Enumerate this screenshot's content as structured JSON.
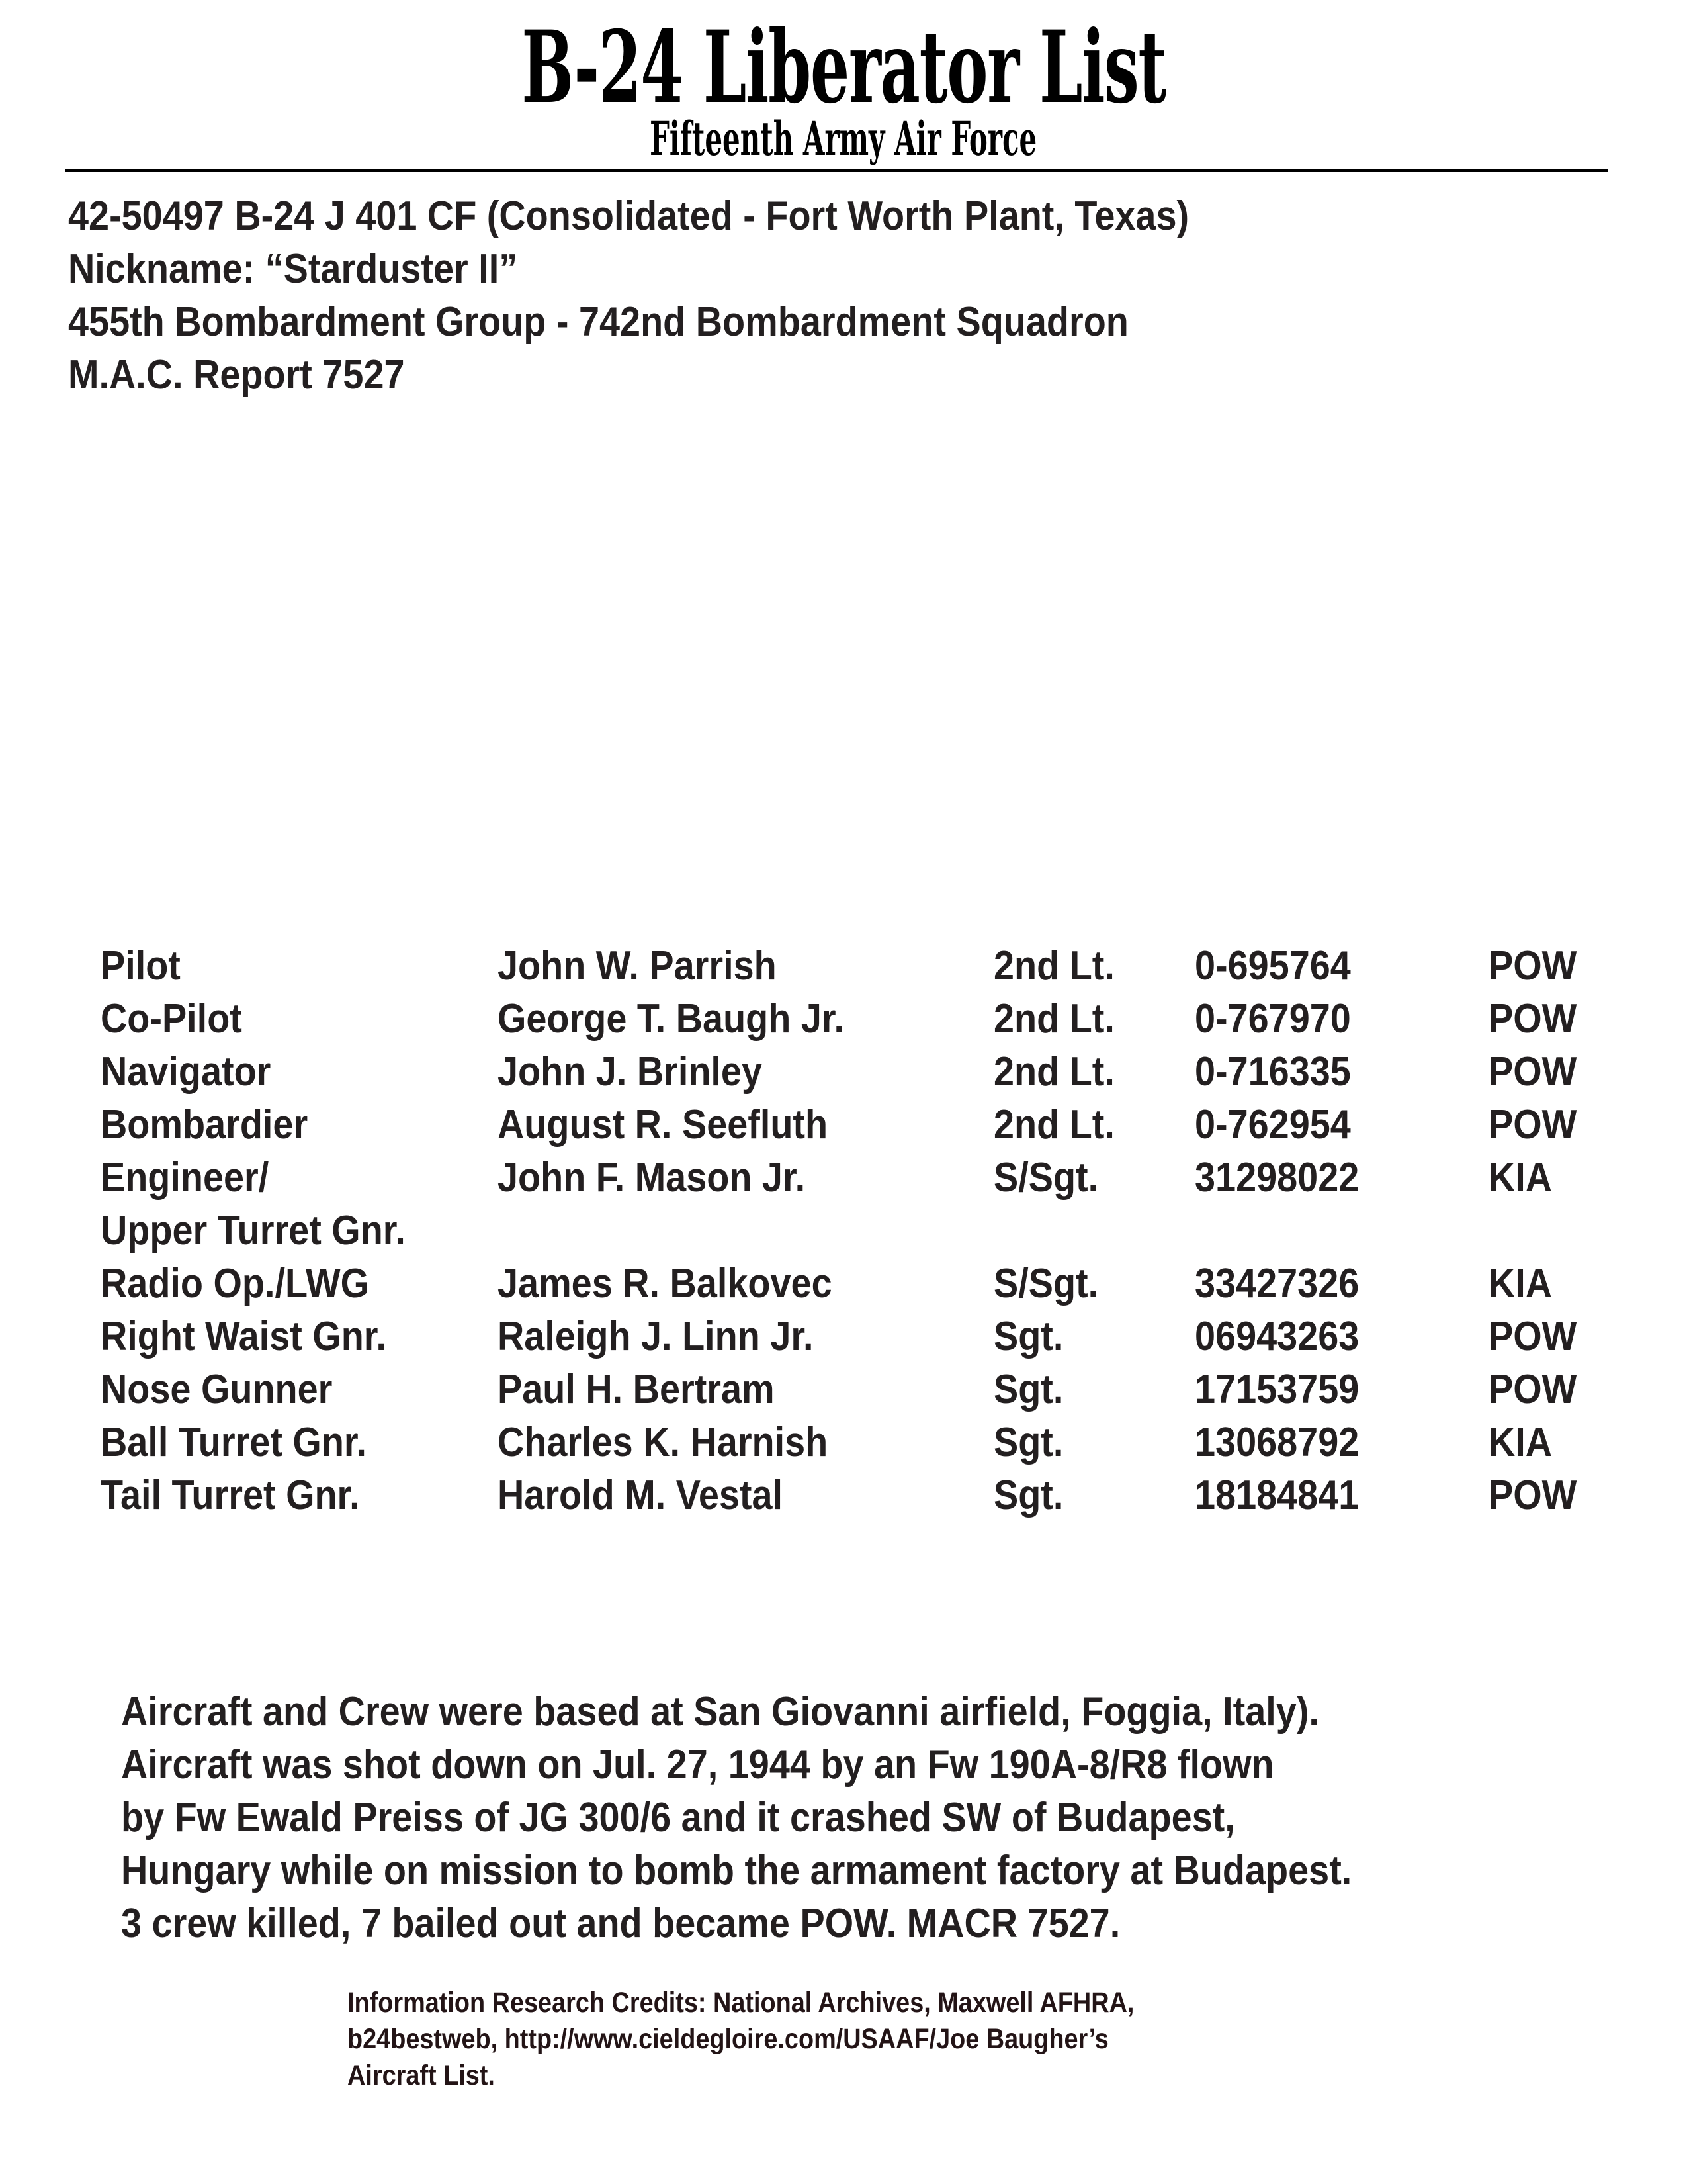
{
  "header": {
    "title": "B-24 Liberator List",
    "subtitle": "Fifteenth Army Air Force"
  },
  "aircraft": {
    "line1": "42-50497  B-24 J 401 CF  (Consolidated - Fort Worth Plant,  Texas)",
    "line2": "Nickname: “Starduster II”",
    "line3": "455th Bombardment Group - 742nd Bombardment Squadron",
    "line4": "M.A.C.  Report  7527"
  },
  "crew": [
    {
      "position": "Pilot",
      "name": "John W. Parrish",
      "rank": "2nd Lt.",
      "serial": "0-695764",
      "status": "POW"
    },
    {
      "position": "Co-Pilot",
      "name": "George T. Baugh Jr.",
      "rank": "2nd Lt.",
      "serial": "0-767970",
      "status": "POW"
    },
    {
      "position": "Navigator",
      "name": "John J. Brinley",
      "rank": "2nd Lt.",
      "serial": "0-716335",
      "status": "POW"
    },
    {
      "position": "Bombardier",
      "name": "August R. Seefluth",
      "rank": "2nd Lt.",
      "serial": "0-762954",
      "status": "POW"
    },
    {
      "position": "Engineer/",
      "name": "John F. Mason Jr.",
      "rank": "S/Sgt.",
      "serial": "31298022",
      "status": "KIA"
    },
    {
      "position": "Upper Turret Gnr.",
      "name": "",
      "rank": "",
      "serial": "",
      "status": ""
    },
    {
      "position": "Radio Op./LWG",
      "name": "James R. Balkovec",
      "rank": "S/Sgt.",
      "serial": "33427326",
      "status": "KIA"
    },
    {
      "position": "Right Waist Gnr.",
      "name": "Raleigh J. Linn Jr.",
      "rank": "Sgt.",
      "serial": "06943263",
      "status": "POW"
    },
    {
      "position": "Nose Gunner",
      "name": "Paul H. Bertram",
      "rank": "Sgt.",
      "serial": "17153759",
      "status": "POW"
    },
    {
      "position": "Ball Turret Gnr.",
      "name": "Charles K. Harnish",
      "rank": "Sgt.",
      "serial": "13068792",
      "status": "KIA"
    },
    {
      "position": "Tail Turret Gnr.",
      "name": "Harold M. Vestal",
      "rank": "Sgt.",
      "serial": "18184841",
      "status": "POW"
    }
  ],
  "narrative": [
    "Aircraft and Crew were based at San Giovanni airfield, Foggia, Italy).",
    "Aircraft was shot down on Jul. 27, 1944 by an  Fw 190A-8/R8 flown",
    "by Fw Ewald Preiss of JG 300/6 and it crashed SW of Budapest,",
    "Hungary while on mission to bomb the armament factory at Budapest.",
    "3 crew killed, 7 bailed out and became POW.  MACR 7527."
  ],
  "credits": [
    "Information Research Credits: National Archives, Maxwell AFHRA,",
    "b24bestweb, http://www.cieldegloire.com/USAAF/Joe Baugher’s",
    "Aircraft List."
  ]
}
